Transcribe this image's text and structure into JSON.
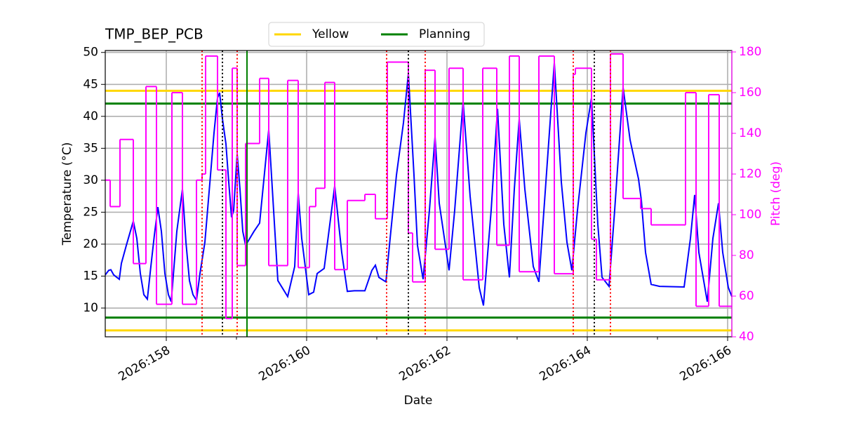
{
  "chart_data": {
    "type": "line",
    "title": "TMP_BEP_PCB",
    "xlabel": "Date",
    "ylabel": "Temperature (°C)",
    "y2label": "Pitch (deg)",
    "xlim": [
      157.13,
      166.06
    ],
    "ylim": [
      5.5,
      50.3
    ],
    "y2lim": [
      40,
      180.7
    ],
    "xticks": [
      {
        "value": 158,
        "label": "2026:158"
      },
      {
        "value": 160,
        "label": "2026:160"
      },
      {
        "value": 162,
        "label": "2026:162"
      },
      {
        "value": 164,
        "label": "2026:164"
      },
      {
        "value": 166,
        "label": "2026:166"
      }
    ],
    "xminorticks": [
      159,
      161,
      163,
      165
    ],
    "yticks": [
      10,
      15,
      20,
      25,
      30,
      35,
      40,
      45,
      50
    ],
    "y2ticks": [
      40,
      60,
      80,
      100,
      120,
      140,
      160,
      180
    ],
    "grid": true,
    "legend_loc": "upper center",
    "series": [
      {
        "color": "#0000ff",
        "x": [
          157.13,
          157.18,
          157.21,
          157.25,
          157.33,
          157.36,
          157.43,
          157.53,
          157.58,
          157.63,
          157.68,
          157.73,
          157.78,
          157.83,
          157.88,
          157.93,
          157.98,
          158.03,
          158.07,
          158.11,
          158.15,
          158.23,
          158.28,
          158.33,
          158.38,
          158.43,
          158.48,
          158.55,
          158.63,
          158.68,
          158.73,
          158.76,
          158.8,
          158.85,
          158.89,
          158.93,
          158.96,
          159.01,
          159.05,
          159.09,
          159.13,
          159.25,
          159.33,
          159.46,
          159.59,
          159.73,
          159.83,
          159.88,
          159.93,
          160.03,
          160.1,
          160.15,
          160.25,
          160.4,
          160.5,
          160.58,
          160.68,
          160.83,
          160.93,
          160.98,
          161.03,
          161.13,
          161.19,
          161.28,
          161.38,
          161.45,
          161.53,
          161.58,
          161.66,
          161.75,
          161.83,
          161.89,
          162.03,
          162.11,
          162.23,
          162.33,
          162.46,
          162.52,
          162.63,
          162.72,
          162.81,
          162.89,
          162.96,
          163.03,
          163.11,
          163.23,
          163.31,
          163.41,
          163.53,
          163.63,
          163.71,
          163.78,
          163.86,
          163.98,
          164.06,
          164.15,
          164.21,
          164.31,
          164.39,
          164.51,
          164.61,
          164.73,
          164.77,
          164.83,
          164.91,
          165.03,
          165.38,
          165.47,
          165.53,
          165.59,
          165.71,
          165.79,
          165.87,
          165.93,
          166.01,
          166.06
        ],
        "values": [
          15.2,
          15.9,
          16.0,
          15.2,
          14.5,
          17.0,
          19.8,
          23.6,
          20.9,
          15.4,
          12.1,
          11.4,
          16.5,
          21.4,
          25.8,
          22.0,
          15.4,
          12.1,
          11.0,
          16.5,
          22.0,
          28.6,
          20.3,
          14.3,
          12.1,
          11.2,
          15.4,
          20.3,
          30.8,
          37.4,
          42.9,
          43.7,
          39.6,
          35.7,
          29.7,
          24.2,
          25.3,
          34.1,
          28.6,
          22.0,
          19.8,
          22.0,
          23.3,
          37.9,
          14.3,
          11.8,
          16.5,
          28.0,
          20.9,
          12.1,
          12.5,
          15.4,
          16.2,
          29.1,
          18.7,
          12.6,
          12.7,
          12.7,
          15.9,
          16.7,
          14.8,
          14.1,
          20.9,
          30.8,
          39.0,
          46.7,
          30.8,
          19.8,
          14.5,
          25.3,
          36.8,
          26.4,
          15.9,
          25.3,
          42.3,
          27.5,
          13.2,
          10.4,
          25.3,
          41.2,
          23.1,
          14.8,
          28.6,
          39.6,
          28.6,
          16.5,
          14.1,
          29.7,
          48.4,
          29.7,
          20.3,
          15.9,
          25.3,
          37.4,
          42.9,
          23.1,
          14.8,
          13.4,
          25.3,
          44.5,
          36.3,
          30.2,
          26.9,
          18.7,
          13.7,
          13.4,
          13.3,
          20.9,
          27.7,
          18.7,
          11.0,
          20.9,
          26.4,
          18.7,
          13.2,
          11.8
        ]
      },
      {
        "color": "#ff00ff",
        "axis": "y2",
        "drawstyle": "steps-post",
        "x": [
          157.13,
          157.2,
          157.34,
          157.53,
          157.71,
          157.86,
          158.08,
          158.23,
          158.43,
          158.51,
          158.56,
          158.73,
          158.85,
          158.94,
          159.01,
          159.13,
          159.33,
          159.46,
          159.73,
          159.88,
          160.04,
          160.13,
          160.26,
          160.4,
          160.58,
          160.83,
          160.98,
          161.15,
          161.45,
          161.51,
          161.69,
          161.83,
          162.03,
          162.23,
          162.51,
          162.71,
          162.89,
          163.03,
          163.31,
          163.53,
          163.8,
          163.83,
          164.06,
          164.13,
          164.33,
          164.51,
          164.76,
          164.91,
          165.4,
          165.55,
          165.73,
          165.88
        ],
        "values": [
          117,
          104,
          137,
          76,
          163,
          56,
          160,
          56,
          117,
          120,
          178,
          122,
          49,
          172,
          75,
          135,
          167,
          75,
          166,
          74,
          104,
          113,
          165,
          73,
          107,
          110,
          98,
          175,
          91,
          67,
          171,
          83,
          172,
          68,
          172,
          85,
          178,
          72,
          178,
          71,
          169,
          172,
          88,
          68,
          179,
          108,
          103,
          95,
          160,
          55,
          159,
          55
        ]
      }
    ],
    "hlines": [
      {
        "name": "Yellow",
        "color": "#ffd700",
        "y": [
          44,
          6.5
        ]
      },
      {
        "name": "Planning",
        "color": "#008000",
        "y": [
          42,
          8.5
        ]
      }
    ],
    "vlines": [
      {
        "color": "#ff0000",
        "style": "dotted",
        "x": [
          158.51,
          159.01,
          161.14,
          161.69,
          163.8,
          164.33
        ]
      },
      {
        "color": "#000000",
        "style": "dotted",
        "x": [
          158.8,
          161.45,
          164.1
        ]
      },
      {
        "color": "#008000",
        "style": "solid",
        "x": [
          159.15
        ]
      }
    ]
  }
}
